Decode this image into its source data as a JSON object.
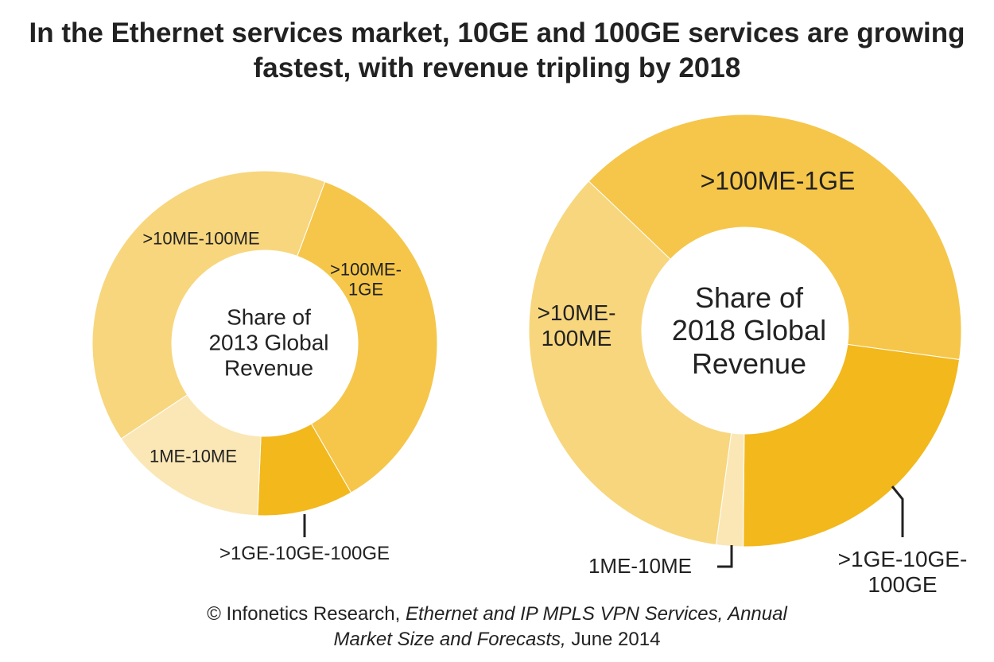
{
  "title": "In the Ethernet services market, 10GE and 100GE services are growing fastest, with revenue tripling by 2018",
  "source": [
    "© Infonetics Research,",
    "Ethernet and IP MPLS VPN Services, Annual Market Size and Forecasts,",
    "June 2014"
  ],
  "chart_data": [
    {
      "type": "pie",
      "title": "Share of 2013 Global Revenue",
      "categories": [
        ">100ME-1GE",
        ">1GE-10GE-100GE",
        "1ME-10ME",
        ">10ME-100ME"
      ],
      "values": [
        36,
        9,
        15,
        40
      ],
      "colors": [
        "#f5c64a",
        "#f2b81c",
        "#fae7b5",
        "#f7d67d"
      ]
    },
    {
      "type": "pie",
      "title": "Share of 2018 Global Revenue",
      "categories": [
        ">100ME-1GE",
        ">1GE-10GE-100GE",
        "1ME-10ME",
        ">10ME-100ME"
      ],
      "values": [
        40,
        23,
        2,
        35
      ],
      "colors": [
        "#f5c64a",
        "#f2b81c",
        "#fae7b5",
        "#f7d67d"
      ]
    }
  ]
}
